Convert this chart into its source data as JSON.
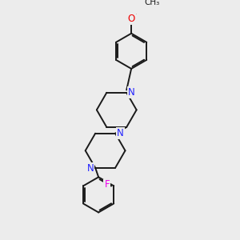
{
  "bg": "#ececec",
  "bond_color": "#1a1a1a",
  "N_color": "#2020ff",
  "O_color": "#ee0000",
  "F_color": "#ee00ee",
  "bw": 1.4,
  "dbo": 0.055,
  "fs": 8.5,
  "figsize": [
    3.0,
    3.0
  ],
  "dpi": 100,
  "xlim": [
    0,
    10
  ],
  "ylim": [
    0,
    10
  ]
}
